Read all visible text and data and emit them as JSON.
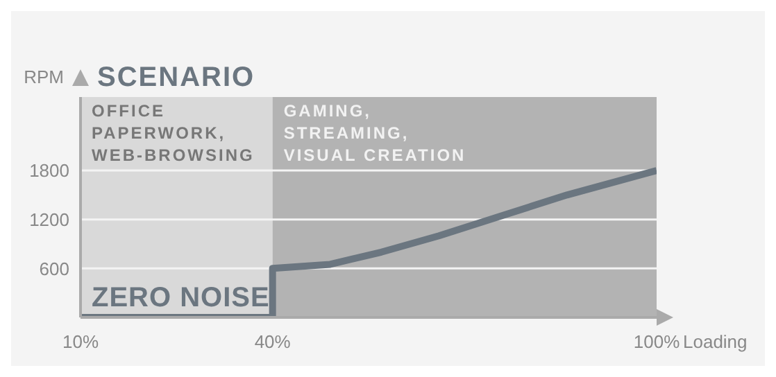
{
  "chart_data": {
    "type": "line",
    "title": "SCENARIO",
    "ylabel": "RPM",
    "xlabel": "Loading",
    "x": [
      10,
      40,
      40,
      49,
      57,
      66,
      76,
      86,
      100
    ],
    "series": [
      {
        "color": "#6b7680",
        "values": [
          0,
          0,
          600,
          650,
          800,
          1000,
          1250,
          1500,
          1800
        ]
      }
    ],
    "xlim": [
      10,
      100
    ],
    "xticks": [
      {
        "value": 10,
        "label": "10%"
      },
      {
        "value": 40,
        "label": "40%"
      },
      {
        "value": 100,
        "label": "100%"
      }
    ],
    "ylim": [
      0,
      2700
    ],
    "yticks": [
      600,
      1200,
      1800
    ],
    "grid": "y",
    "marker": "none",
    "line_style": "solid",
    "bands": [
      {
        "axis": "x",
        "from": 10,
        "to": 40,
        "label": "OFFICE\nPAPERWORK,\nWEB-BROWSING",
        "color": "#d9d9d9"
      },
      {
        "axis": "x",
        "from": 40,
        "to": 100,
        "label": "GAMING,\nSTREAMING,\nVISUAL CREATION",
        "color": "#b3b3b3"
      }
    ],
    "annotations": [
      {
        "text": "ZERO NOISE",
        "x": 10,
        "y": 0
      }
    ]
  }
}
